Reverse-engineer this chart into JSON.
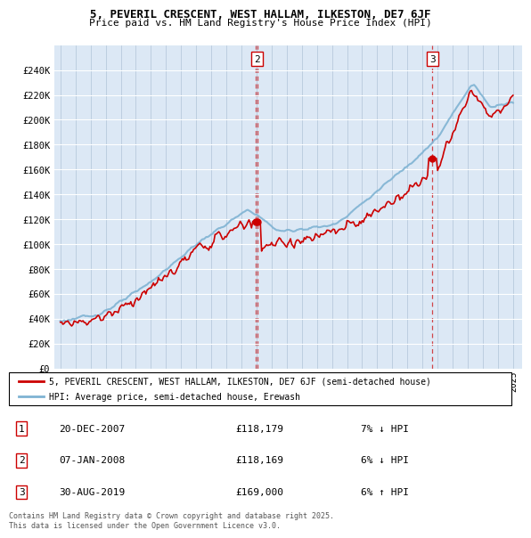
{
  "title1": "5, PEVERIL CRESCENT, WEST HALLAM, ILKESTON, DE7 6JF",
  "title2": "Price paid vs. HM Land Registry's House Price Index (HPI)",
  "ylabel_ticks": [
    "£0",
    "£20K",
    "£40K",
    "£60K",
    "£80K",
    "£100K",
    "£120K",
    "£140K",
    "£160K",
    "£180K",
    "£200K",
    "£220K",
    "£240K"
  ],
  "ytick_values": [
    0,
    20000,
    40000,
    60000,
    80000,
    100000,
    120000,
    140000,
    160000,
    180000,
    200000,
    220000,
    240000
  ],
  "ylim": [
    0,
    260000
  ],
  "legend_line1": "5, PEVERIL CRESCENT, WEST HALLAM, ILKESTON, DE7 6JF (semi-detached house)",
  "legend_line2": "HPI: Average price, semi-detached house, Erewash",
  "transactions": [
    {
      "num": 1,
      "date": "20-DEC-2007",
      "price": "£118,179",
      "hpi": "7% ↓ HPI",
      "year": 2007.97,
      "value": 118179
    },
    {
      "num": 2,
      "date": "07-JAN-2008",
      "price": "£118,169",
      "hpi": "6% ↓ HPI",
      "year": 2008.04,
      "value": 118169
    },
    {
      "num": 3,
      "date": "30-AUG-2019",
      "price": "£169,000",
      "hpi": "6% ↑ HPI",
      "year": 2019.66,
      "value": 169000
    }
  ],
  "footnote": "Contains HM Land Registry data © Crown copyright and database right 2025.\nThis data is licensed under the Open Government Licence v3.0.",
  "red_color": "#cc0000",
  "blue_color": "#7fb3d3",
  "plot_bg": "#dce8f5",
  "chart_right_bg": "#cddff0"
}
